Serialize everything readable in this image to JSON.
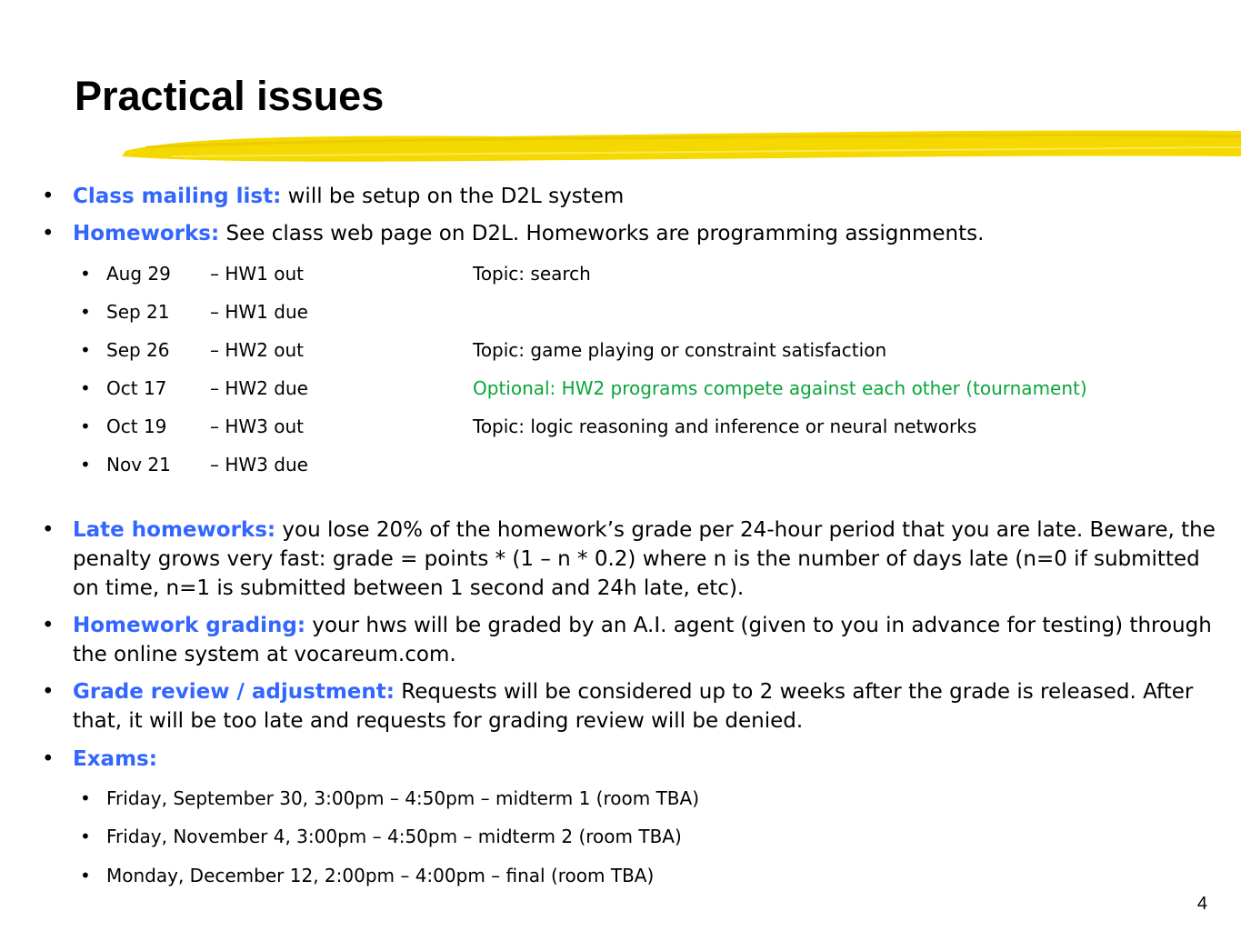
{
  "slide": {
    "title": "Practical issues",
    "page_number": "4"
  },
  "colors": {
    "keyword": "#3366ff",
    "highlight": "#0aa53a",
    "underline_stroke": "#f5d800"
  },
  "bullets": [
    {
      "keyword": "Class mailing list:",
      "text": " will be setup on the D2L system"
    },
    {
      "keyword": "Homeworks:",
      "text": " See class web page on D2L. Homeworks are programming assignments."
    }
  ],
  "schedule": [
    {
      "date": "Aug 29",
      "event": "– HW1 out",
      "note": "Topic: search"
    },
    {
      "date": "Sep 21",
      "event": "– HW1 due",
      "note": ""
    },
    {
      "date": "Sep 26",
      "event": "– HW2 out",
      "note": "Topic: game playing or constraint satisfaction"
    },
    {
      "date": "Oct 17",
      "event": "– HW2 due",
      "note": "Optional: HW2 programs compete against each other (tournament)"
    },
    {
      "date": "Oct 19",
      "event": "– HW3 out",
      "note": "Topic: logic reasoning and inference or neural networks"
    },
    {
      "date": "Nov 21",
      "event": "– HW3 due",
      "note": ""
    }
  ],
  "policies": [
    {
      "keyword": "Late homeworks:",
      "text": " you lose 20% of the homework’s grade per 24-hour period that you are late. Beware, the penalty grows very fast: grade = points * (1 – n * 0.2) where n is the number of days late (n=0 if submitted on time, n=1 is submitted between 1 second and 24h late, etc)."
    },
    {
      "keyword": "Homework grading:",
      "text": " your hws will be graded by an A.I. agent (given to you in advance for testing) through the online system at vocareum.com."
    },
    {
      "keyword": "Grade review / adjustment:",
      "text": " Requests will be considered up to 2 weeks after the grade is released. After that, it will be too late and requests for grading review will be denied."
    },
    {
      "keyword": "Exams:",
      "text": ""
    }
  ],
  "exams": [
    "Friday, September 30, 3:00pm – 4:50pm – midterm 1 (room TBA)",
    "Friday, November 4, 3:00pm – 4:50pm – midterm 2 (room TBA)",
    "Monday, December 12, 2:00pm – 4:00pm – final (room TBA)"
  ]
}
